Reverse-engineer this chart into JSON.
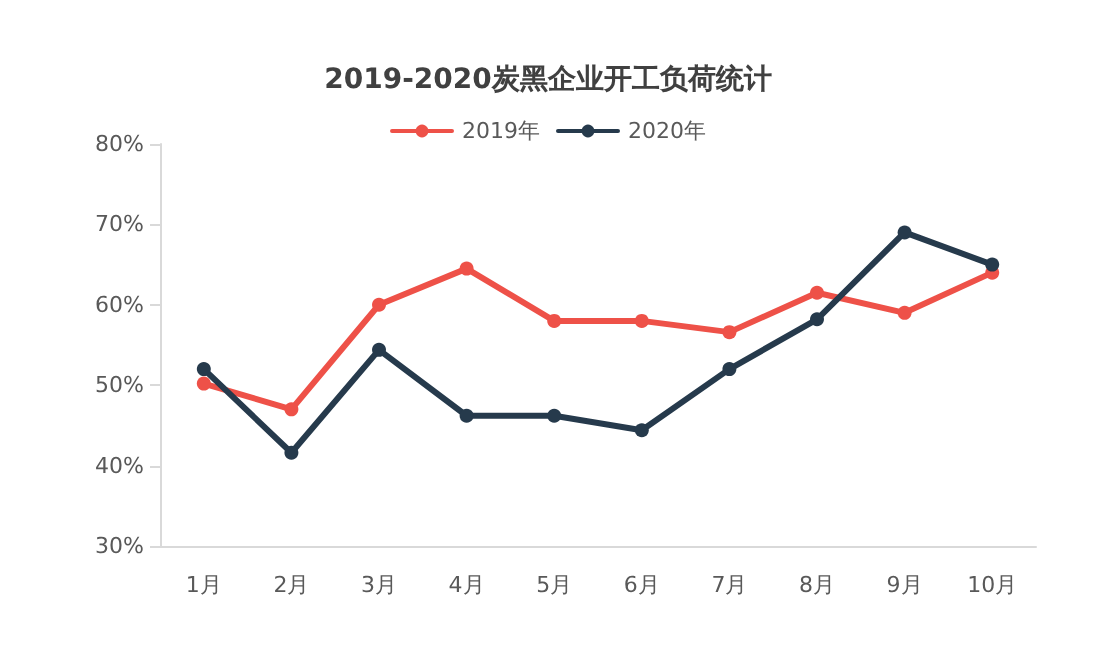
{
  "chart_data": {
    "type": "line",
    "title": "2019-2020炭黑企业开工负荷统计",
    "categories": [
      "1月",
      "2月",
      "3月",
      "4月",
      "5月",
      "6月",
      "7月",
      "8月",
      "9月",
      "10月"
    ],
    "series": [
      {
        "name": "2019年",
        "color": "#ee5148",
        "values": [
          50.2,
          47,
          60,
          64.5,
          58,
          58,
          56.6,
          61.5,
          59,
          64
        ]
      },
      {
        "name": "2020年",
        "color": "#263a4c",
        "values": [
          52,
          41.6,
          54.4,
          46.2,
          46.2,
          44.4,
          52,
          58.2,
          69,
          65
        ]
      }
    ],
    "ylim": [
      30,
      80
    ],
    "yticks": [
      {
        "value": 30,
        "label": "30%"
      },
      {
        "value": 40,
        "label": "40%"
      },
      {
        "value": 50,
        "label": "50%"
      },
      {
        "value": 60,
        "label": "60%"
      },
      {
        "value": 70,
        "label": "70%"
      },
      {
        "value": 80,
        "label": "80%"
      }
    ],
    "grid": false,
    "legend": "top",
    "marker": "circle",
    "line_style": "solid"
  }
}
